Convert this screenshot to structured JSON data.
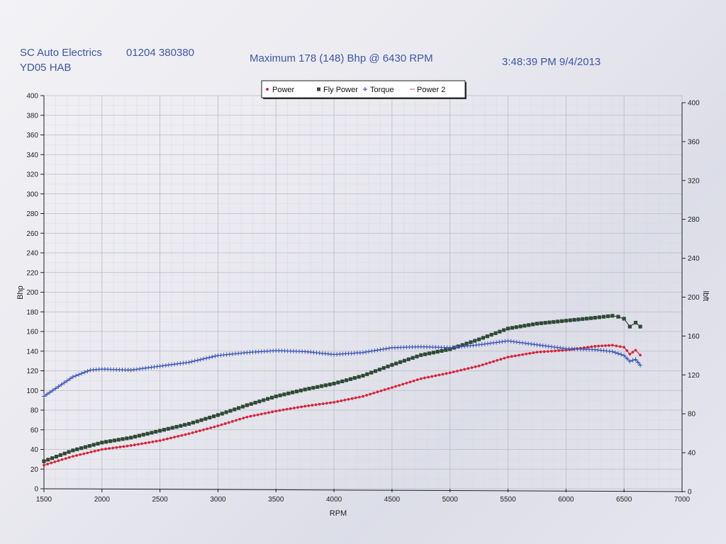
{
  "header": {
    "company": "SC Auto Electrics",
    "phone": "01204 380380",
    "registration": "YD05 HAB",
    "maximum": "Maximum 178 (148) Bhp @ 6430 RPM",
    "timestamp": "3:48:39 PM 9/4/2013"
  },
  "chart_data": {
    "type": "line",
    "title": "Maximum 178 (148) Bhp @ 6430 RPM",
    "xlabel": "RPM",
    "ylabel": "Bhp",
    "y2label": "lbft",
    "xlim": [
      1500,
      7000
    ],
    "ylim": [
      0,
      400
    ],
    "y2lim": [
      0,
      400
    ],
    "xticks": [
      1500,
      2000,
      2500,
      3000,
      3500,
      4000,
      4500,
      5000,
      5500,
      6000,
      6500,
      7000
    ],
    "yticks": [
      0,
      20,
      40,
      60,
      80,
      100,
      120,
      140,
      160,
      180,
      200,
      220,
      240,
      260,
      280,
      300,
      320,
      340,
      360,
      380,
      400
    ],
    "y2ticks": [
      0,
      40,
      80,
      120,
      160,
      200,
      240,
      280,
      320,
      360,
      400
    ],
    "grid": true,
    "legend_position": "top-center",
    "series": [
      {
        "name": "Power",
        "axis": "left",
        "color": "#d6283c",
        "marker": "dot",
        "x": [
          1500,
          1750,
          2000,
          2250,
          2500,
          2750,
          3000,
          3250,
          3500,
          3750,
          4000,
          4250,
          4500,
          4750,
          5000,
          5250,
          5500,
          5750,
          6000,
          6250,
          6400,
          6500,
          6550,
          6600,
          6640
        ],
        "y": [
          24,
          33,
          40,
          44,
          49,
          56,
          64,
          73,
          79,
          84,
          88,
          94,
          103,
          112,
          118,
          125,
          134,
          139,
          141,
          145,
          146,
          144,
          137,
          141,
          136
        ]
      },
      {
        "name": "Fly Power",
        "axis": "left",
        "color": "#2e4a36",
        "marker": "square",
        "x": [
          1500,
          1750,
          2000,
          2250,
          2500,
          2750,
          3000,
          3250,
          3500,
          3750,
          4000,
          4250,
          4500,
          4750,
          5000,
          5250,
          5500,
          5750,
          6000,
          6250,
          6400,
          6450,
          6500,
          6550,
          6600,
          6640
        ],
        "y": [
          28,
          39,
          47,
          52,
          59,
          66,
          75,
          85,
          94,
          101,
          107,
          115,
          126,
          136,
          142,
          152,
          163,
          168,
          171,
          174,
          176,
          175,
          173,
          165,
          169,
          165
        ]
      },
      {
        "name": "Torque",
        "axis": "right",
        "color": "#3b55b5",
        "marker": "plus",
        "x": [
          1500,
          1600,
          1750,
          1900,
          2000,
          2250,
          2500,
          2750,
          3000,
          3250,
          3500,
          3750,
          4000,
          4250,
          4500,
          4750,
          5000,
          5250,
          5500,
          5750,
          6000,
          6250,
          6400,
          6500,
          6550,
          6600,
          6640
        ],
        "y": [
          98,
          106,
          118,
          125,
          126,
          125,
          129,
          133,
          140,
          143,
          145,
          144,
          141,
          143,
          148,
          149,
          148,
          151,
          155,
          151,
          147,
          146,
          144,
          140,
          134,
          136,
          130
        ]
      },
      {
        "name": "Power 2",
        "axis": "left",
        "color": "#e06478",
        "marker": "line",
        "x": [],
        "y": []
      }
    ]
  }
}
